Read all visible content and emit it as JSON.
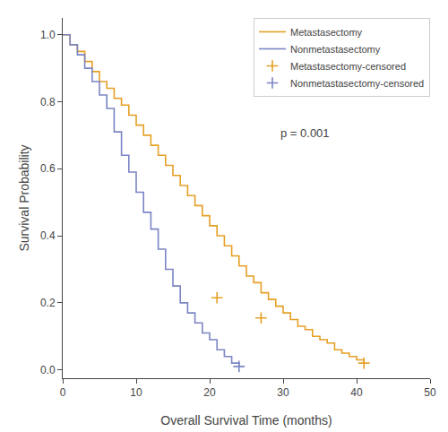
{
  "chart_data": {
    "type": "line",
    "xlabel": "Overall Survival Time (months)",
    "ylabel": "Survival Probability",
    "xlim": [
      0,
      50
    ],
    "ylim": [
      -0.025,
      1.05
    ],
    "xticks": [
      0,
      10,
      20,
      30,
      40,
      50
    ],
    "yticks": [
      {
        "value": 0.0,
        "label": "0.0"
      },
      0.2,
      0.4,
      0.6,
      0.8,
      {
        "value": 1.0,
        "label": "1.0"
      }
    ],
    "grid": false,
    "legend": "upper right",
    "series": [
      {
        "name": "Metastasectomy",
        "type": "line",
        "line_style": "step",
        "color": "#E5A025",
        "x": [
          0,
          1,
          2,
          3,
          4,
          5,
          6,
          7,
          8,
          9,
          10,
          11,
          12,
          13,
          14,
          15,
          16,
          17,
          18,
          19,
          20,
          21,
          22,
          23,
          24,
          25,
          26,
          27,
          28,
          29,
          30,
          31,
          32,
          33,
          34,
          35,
          36,
          37,
          38,
          39,
          40,
          41
        ],
        "values": [
          1.0,
          0.97,
          0.95,
          0.92,
          0.89,
          0.86,
          0.84,
          0.81,
          0.79,
          0.76,
          0.73,
          0.7,
          0.67,
          0.64,
          0.61,
          0.58,
          0.55,
          0.52,
          0.49,
          0.46,
          0.43,
          0.4,
          0.37,
          0.34,
          0.31,
          0.28,
          0.26,
          0.23,
          0.21,
          0.19,
          0.17,
          0.15,
          0.13,
          0.12,
          0.1,
          0.09,
          0.08,
          0.06,
          0.05,
          0.04,
          0.03,
          0.02
        ]
      },
      {
        "name": "Nonmetastasectomy",
        "type": "line",
        "line_style": "step",
        "color": "#7B85C4",
        "x": [
          0,
          1,
          2,
          3,
          4,
          5,
          6,
          7,
          8,
          9,
          10,
          11,
          12,
          13,
          14,
          15,
          16,
          17,
          18,
          19,
          20,
          21,
          22,
          23,
          24
        ],
        "values": [
          1.0,
          0.97,
          0.94,
          0.9,
          0.86,
          0.82,
          0.78,
          0.71,
          0.64,
          0.59,
          0.53,
          0.47,
          0.42,
          0.36,
          0.3,
          0.25,
          0.2,
          0.17,
          0.14,
          0.11,
          0.09,
          0.06,
          0.04,
          0.02,
          0.01
        ]
      },
      {
        "name": "Metastasectomy-censored",
        "type": "scatter",
        "marker": "+",
        "color": "#E5A025",
        "x": [
          21,
          27,
          41
        ],
        "values": [
          0.215,
          0.155,
          0.02
        ]
      },
      {
        "name": "Nonmetastasectomy-censored",
        "type": "scatter",
        "marker": "+",
        "color": "#7B85C4",
        "x": [
          24
        ],
        "values": [
          0.01
        ]
      }
    ],
    "annotations": [
      {
        "text": "p = 0.001",
        "x": 33,
        "y": 0.68
      }
    ]
  }
}
